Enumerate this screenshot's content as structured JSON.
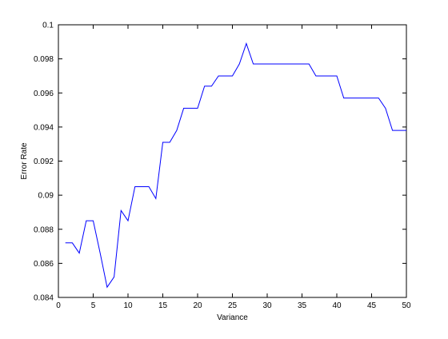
{
  "chart_data": {
    "type": "line",
    "title": "",
    "xlabel": "Variance",
    "ylabel": "Error Rate",
    "xlim": [
      0,
      50
    ],
    "ylim": [
      0.084,
      0.1
    ],
    "grid": false,
    "x_ticks": [
      0,
      5,
      10,
      15,
      20,
      25,
      30,
      35,
      40,
      45,
      50
    ],
    "x_tick_labels": [
      "0",
      "5",
      "10",
      "15",
      "20",
      "25",
      "30",
      "35",
      "40",
      "45",
      "50"
    ],
    "y_ticks": [
      0.084,
      0.086,
      0.088,
      0.09,
      0.092,
      0.094,
      0.096,
      0.098,
      0.1
    ],
    "y_tick_labels": [
      "0.084",
      "0.086",
      "0.088",
      "0.09",
      "0.092",
      "0.094",
      "0.096",
      "0.098",
      "0.1"
    ],
    "series": [
      {
        "color": "#0000ff",
        "x": [
          1,
          2,
          3,
          4,
          5,
          6,
          7,
          8,
          9,
          10,
          11,
          12,
          13,
          14,
          15,
          16,
          17,
          18,
          19,
          20,
          21,
          22,
          23,
          24,
          25,
          26,
          27,
          28,
          29,
          30,
          31,
          32,
          33,
          34,
          35,
          36,
          37,
          38,
          39,
          40,
          41,
          42,
          43,
          44,
          45,
          46,
          47,
          48,
          49,
          50
        ],
        "y": [
          0.0872,
          0.0872,
          0.0866,
          0.0885,
          0.0885,
          0.0866,
          0.0846,
          0.0852,
          0.0891,
          0.0885,
          0.0905,
          0.0905,
          0.0905,
          0.0898,
          0.0931,
          0.0931,
          0.0938,
          0.0951,
          0.0951,
          0.0951,
          0.0964,
          0.0964,
          0.097,
          0.097,
          0.097,
          0.0977,
          0.0989,
          0.0977,
          0.0977,
          0.0977,
          0.0977,
          0.0977,
          0.0977,
          0.0977,
          0.0977,
          0.0977,
          0.097,
          0.097,
          0.097,
          0.097,
          0.0957,
          0.0957,
          0.0957,
          0.0957,
          0.0957,
          0.0957,
          0.0951,
          0.0938,
          0.0938,
          0.0938
        ]
      }
    ]
  }
}
